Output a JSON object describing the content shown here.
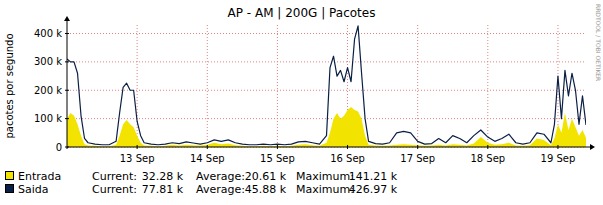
{
  "chart_data": {
    "type": "area",
    "title": "AP - AM | 200G | Pacotes",
    "y_label": "pacotes por segundo",
    "watermark": "RRDTOOL / TOBI OETIKER",
    "stat_labels": [
      "Current:",
      "Average:",
      "Maximum:"
    ],
    "grid": true,
    "legend": "bottom",
    "xlim": [
      12,
      19.4
    ],
    "xticks": [
      {
        "value": 13,
        "label": "13 Sep"
      },
      {
        "value": 14,
        "label": "14 Sep"
      },
      {
        "value": 15,
        "label": "15 Sep"
      },
      {
        "value": 16,
        "label": "16 Sep"
      },
      {
        "value": 17,
        "label": "17 Sep"
      },
      {
        "value": 18,
        "label": "18 Sep"
      },
      {
        "value": 19,
        "label": "19 Sep"
      }
    ],
    "ylim": [
      0,
      430000
    ],
    "yticks": [
      0,
      {
        "value": 100000,
        "label": "100 k"
      },
      {
        "value": 200000,
        "label": "200 k"
      },
      {
        "value": 300000,
        "label": "300 k"
      },
      {
        "value": 400000,
        "label": "400 k"
      }
    ],
    "x": [
      12,
      12.05,
      12.1,
      12.15,
      12.2,
      12.25,
      12.3,
      12.4,
      12.5,
      12.6,
      12.7,
      12.75,
      12.8,
      12.85,
      12.9,
      12.95,
      13,
      13.05,
      13.1,
      13.2,
      13.3,
      13.4,
      13.5,
      13.6,
      13.7,
      13.8,
      13.9,
      14,
      14.1,
      14.2,
      14.3,
      14.4,
      14.5,
      14.6,
      14.7,
      14.8,
      14.9,
      15,
      15.1,
      15.2,
      15.3,
      15.4,
      15.5,
      15.6,
      15.7,
      15.75,
      15.8,
      15.85,
      15.9,
      15.95,
      16,
      16.05,
      16.1,
      16.15,
      16.2,
      16.25,
      16.3,
      16.4,
      16.5,
      16.6,
      16.7,
      16.8,
      16.9,
      17,
      17.1,
      17.2,
      17.3,
      17.4,
      17.5,
      17.6,
      17.7,
      17.8,
      17.9,
      18,
      18.1,
      18.2,
      18.3,
      18.4,
      18.5,
      18.6,
      18.7,
      18.8,
      18.9,
      18.95,
      19,
      19.05,
      19.1,
      19.15,
      19.2,
      19.25,
      19.3,
      19.35,
      19.4
    ],
    "series": [
      {
        "name": "Entrada",
        "type": "area",
        "color": "#f2e400",
        "stats": [
          "32.28 k",
          "20.61 k",
          "141.21 k"
        ],
        "values": [
          100000,
          120000,
          110000,
          80000,
          40000,
          10000,
          5000,
          4000,
          3000,
          3000,
          8000,
          40000,
          80000,
          95000,
          80000,
          70000,
          40000,
          15000,
          5000,
          4000,
          3000,
          4000,
          8000,
          5000,
          8000,
          6000,
          5000,
          8000,
          15000,
          10000,
          12000,
          6000,
          4000,
          3000,
          3000,
          4000,
          3000,
          4000,
          3000,
          4000,
          8000,
          10000,
          6000,
          4000,
          15000,
          50000,
          100000,
          120000,
          100000,
          110000,
          130000,
          141210,
          130000,
          125000,
          100000,
          40000,
          8000,
          5000,
          4000,
          5000,
          8000,
          10000,
          8000,
          6000,
          4000,
          5000,
          8000,
          5000,
          10000,
          8000,
          5000,
          12000,
          35000,
          15000,
          8000,
          10000,
          15000,
          5000,
          4000,
          6000,
          30000,
          25000,
          6000,
          30000,
          80000,
          50000,
          120000,
          60000,
          100000,
          70000,
          40000,
          60000,
          32280
        ]
      },
      {
        "name": "Saida",
        "type": "line",
        "color": "#0b1f45",
        "stats": [
          "77.81 k",
          "45.88 k",
          "426.97 k"
        ],
        "values": [
          310000,
          300000,
          300000,
          260000,
          110000,
          30000,
          15000,
          10000,
          8000,
          8000,
          20000,
          120000,
          210000,
          225000,
          200000,
          200000,
          90000,
          40000,
          15000,
          10000,
          8000,
          10000,
          15000,
          12000,
          18000,
          14000,
          10000,
          15000,
          25000,
          20000,
          25000,
          15000,
          10000,
          8000,
          8000,
          10000,
          8000,
          10000,
          8000,
          10000,
          18000,
          20000,
          15000,
          10000,
          40000,
          280000,
          320000,
          250000,
          270000,
          230000,
          280000,
          230000,
          380000,
          426970,
          260000,
          100000,
          20000,
          12000,
          10000,
          15000,
          50000,
          55000,
          50000,
          20000,
          10000,
          12000,
          30000,
          15000,
          40000,
          30000,
          15000,
          40000,
          60000,
          35000,
          20000,
          30000,
          45000,
          15000,
          10000,
          15000,
          50000,
          45000,
          15000,
          80000,
          250000,
          100000,
          270000,
          180000,
          260000,
          200000,
          80000,
          180000,
          77810
        ]
      }
    ]
  }
}
